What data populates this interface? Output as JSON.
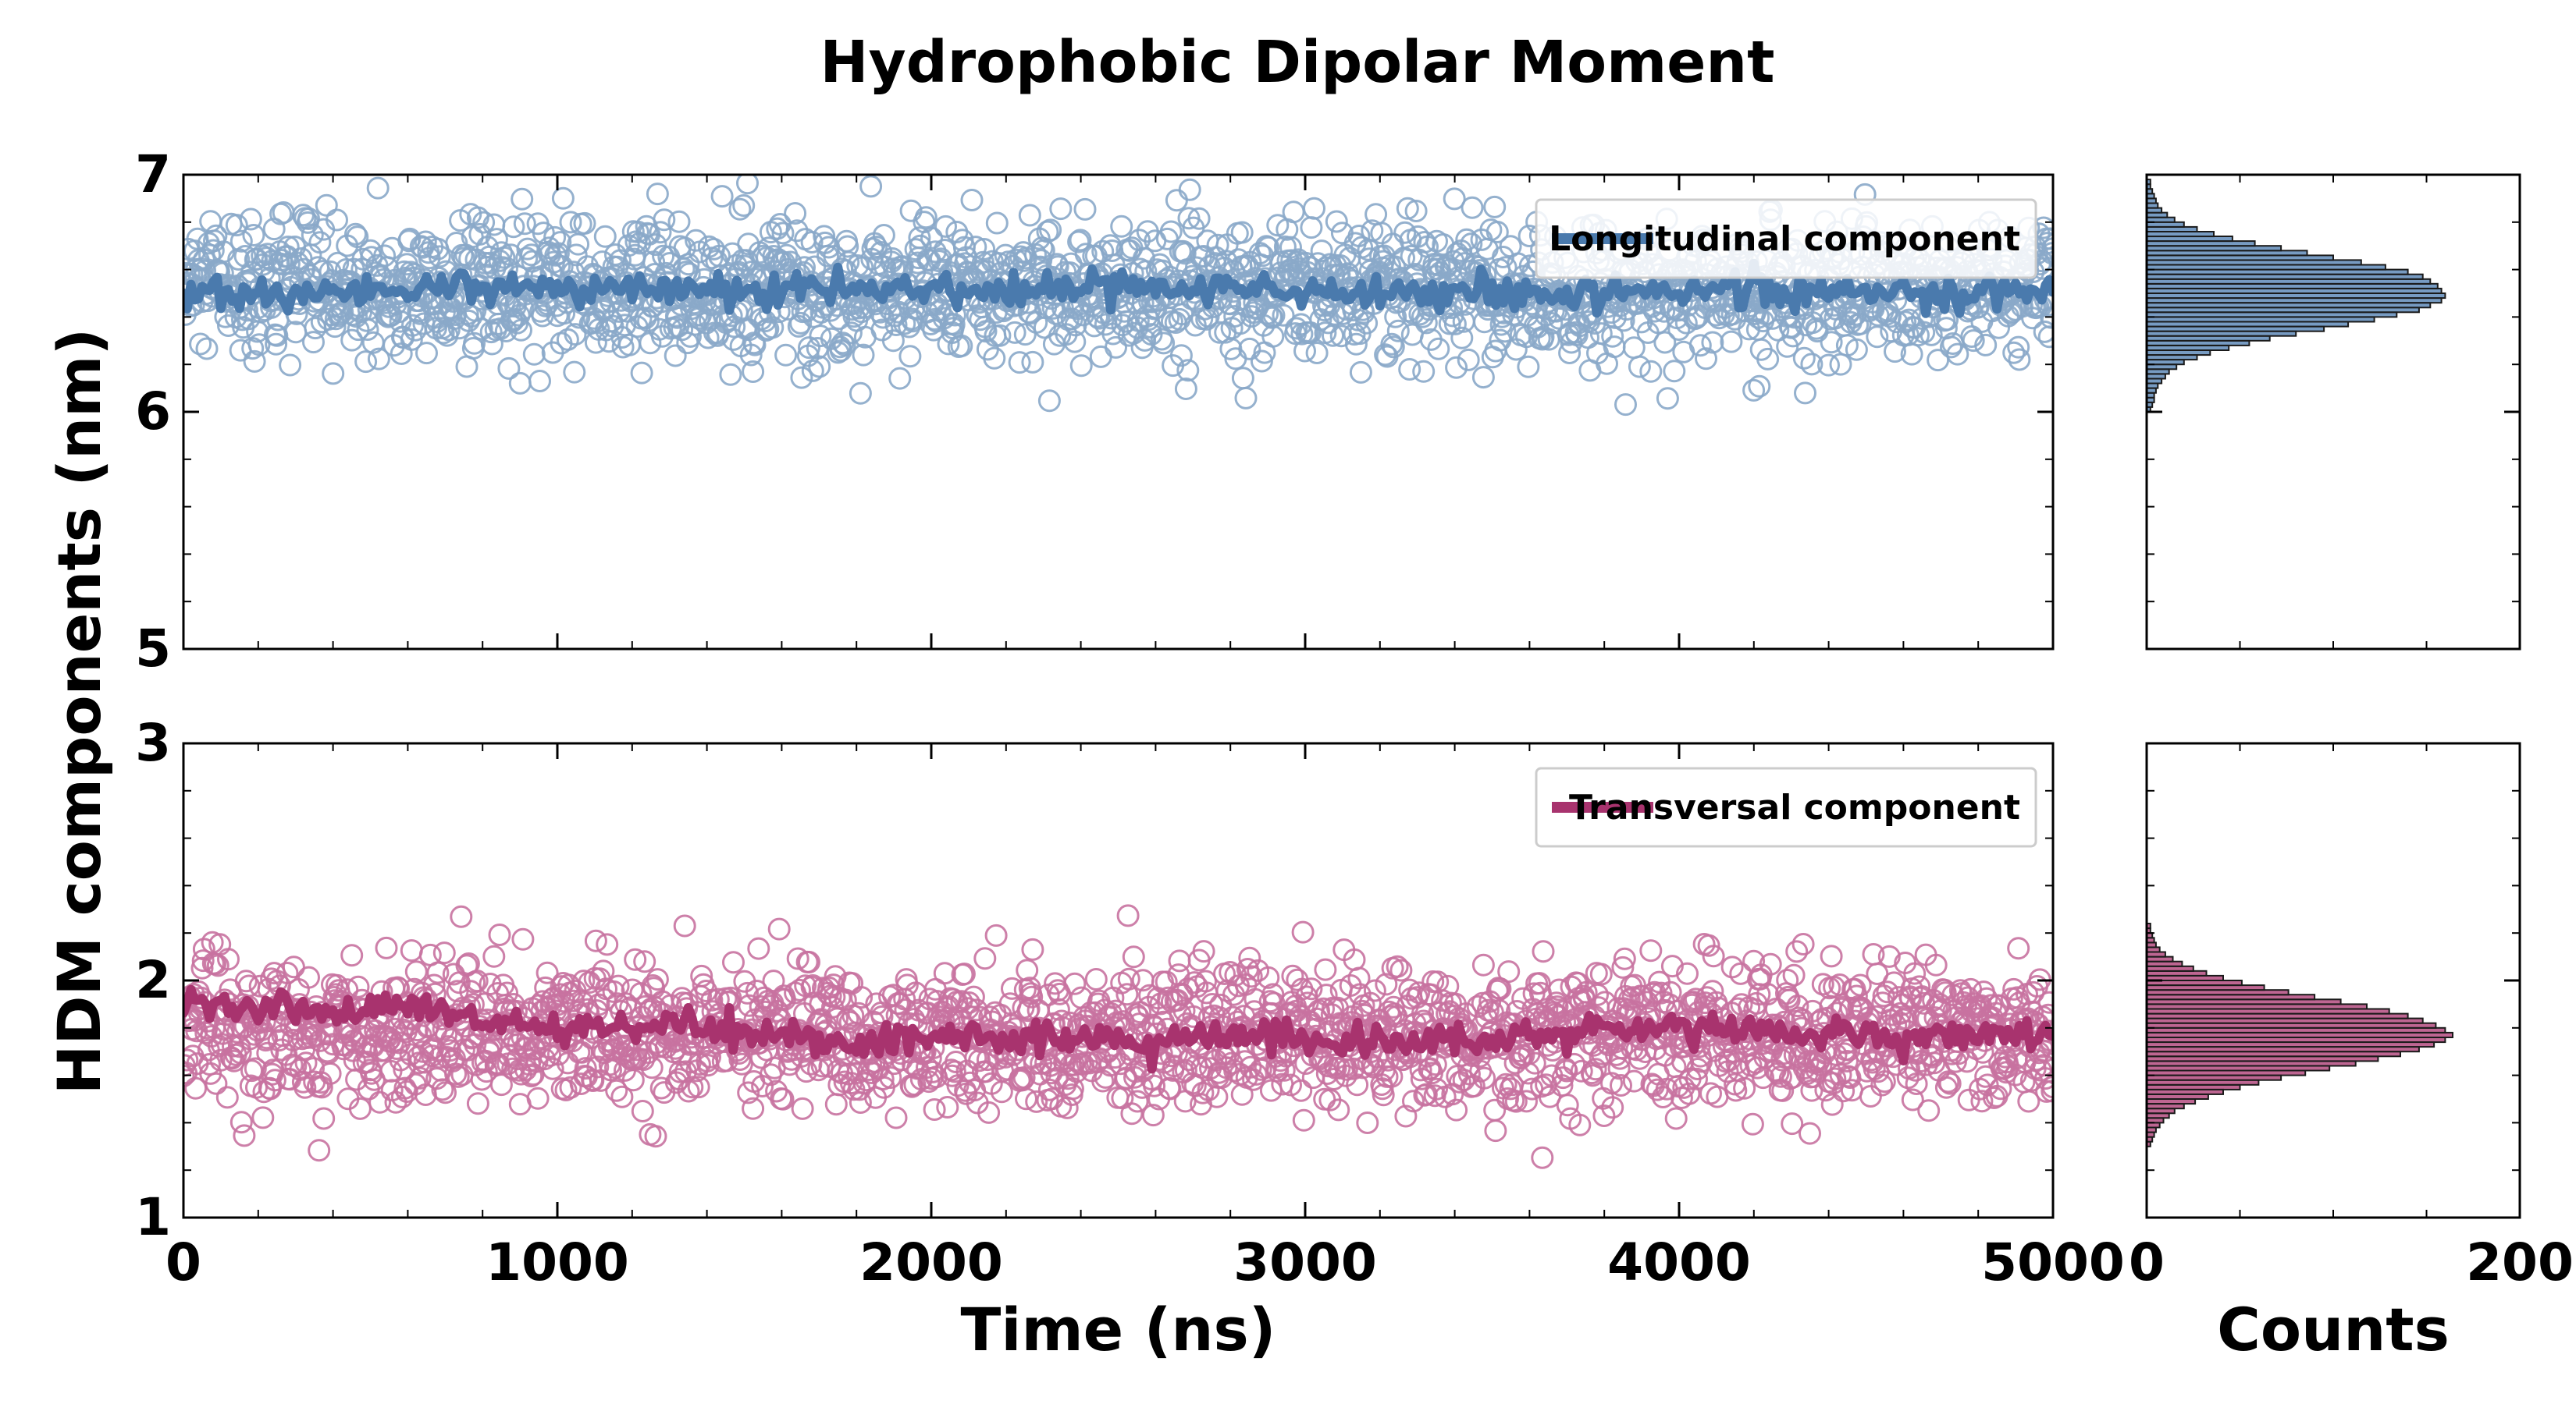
{
  "chart_data": {
    "type": "scatter",
    "title": "Hydrophobic Dipolar Moment",
    "ylabel": "HDM components (nm)",
    "panels": [
      {
        "id": "longitudinal",
        "kind": "scatter+line",
        "legend": "Longitudinal component",
        "legend_position": "top-right",
        "xlim": [
          0,
          5000
        ],
        "ylim": [
          5,
          7
        ],
        "y_ticks": [
          "5",
          "6",
          "7"
        ],
        "x_ticks_labeled": false,
        "color": "#4a7aad",
        "marker_color": "#8aa9c9",
        "x_range": [
          0,
          5000
        ],
        "n_points": 2000,
        "scatter_mean": 6.51,
        "scatter_sd": 0.15,
        "running_mean": [
          [
            0,
            6.5
          ],
          [
            200,
            6.49
          ],
          [
            400,
            6.5
          ],
          [
            600,
            6.52
          ],
          [
            800,
            6.53
          ],
          [
            1000,
            6.51
          ],
          [
            1200,
            6.53
          ],
          [
            1400,
            6.5
          ],
          [
            1600,
            6.52
          ],
          [
            1800,
            6.51
          ],
          [
            2000,
            6.52
          ],
          [
            2200,
            6.5
          ],
          [
            2400,
            6.54
          ],
          [
            2600,
            6.53
          ],
          [
            2800,
            6.52
          ],
          [
            3000,
            6.5
          ],
          [
            3200,
            6.51
          ],
          [
            3400,
            6.5
          ],
          [
            3600,
            6.49
          ],
          [
            3800,
            6.5
          ],
          [
            4000,
            6.51
          ],
          [
            4200,
            6.51
          ],
          [
            4400,
            6.52
          ],
          [
            4600,
            6.51
          ],
          [
            4800,
            6.5
          ],
          [
            5000,
            6.51
          ]
        ]
      },
      {
        "id": "transversal",
        "kind": "scatter+line",
        "legend": "Transversal component",
        "legend_position": "top-right",
        "xlim": [
          0,
          5000
        ],
        "ylim": [
          1,
          3
        ],
        "y_ticks": [
          "1",
          "2",
          "3"
        ],
        "x_ticks": [
          "0",
          "1000",
          "2000",
          "3000",
          "4000",
          "5000"
        ],
        "xlabel": "Time (ns)",
        "color": "#a8336e",
        "marker_color": "#c872a0",
        "x_range": [
          0,
          5000
        ],
        "n_points": 2000,
        "scatter_mean": 1.77,
        "scatter_sd": 0.15,
        "running_mean": [
          [
            0,
            1.9
          ],
          [
            200,
            1.88
          ],
          [
            400,
            1.86
          ],
          [
            600,
            1.88
          ],
          [
            800,
            1.83
          ],
          [
            1000,
            1.79
          ],
          [
            1200,
            1.82
          ],
          [
            1400,
            1.8
          ],
          [
            1600,
            1.76
          ],
          [
            1800,
            1.74
          ],
          [
            2000,
            1.77
          ],
          [
            2200,
            1.75
          ],
          [
            2400,
            1.76
          ],
          [
            2600,
            1.74
          ],
          [
            2800,
            1.77
          ],
          [
            3000,
            1.76
          ],
          [
            3200,
            1.75
          ],
          [
            3400,
            1.74
          ],
          [
            3600,
            1.77
          ],
          [
            3800,
            1.79
          ],
          [
            4000,
            1.8
          ],
          [
            4200,
            1.79
          ],
          [
            4400,
            1.77
          ],
          [
            4600,
            1.76
          ],
          [
            4800,
            1.77
          ],
          [
            5000,
            1.78
          ]
        ]
      },
      {
        "id": "hist-longitudinal",
        "kind": "histogram",
        "orientation": "horizontal",
        "xlim": [
          0,
          200
        ],
        "ylim": [
          5,
          7
        ],
        "color": "#4a7aad",
        "bin_width": 0.02,
        "bins": [
          [
            6.0,
            6.02,
            2
          ],
          [
            6.02,
            6.04,
            3
          ],
          [
            6.04,
            6.06,
            4
          ],
          [
            6.06,
            6.08,
            4
          ],
          [
            6.08,
            6.1,
            5
          ],
          [
            6.1,
            6.12,
            6
          ],
          [
            6.12,
            6.14,
            8
          ],
          [
            6.14,
            6.16,
            10
          ],
          [
            6.16,
            6.18,
            12
          ],
          [
            6.18,
            6.2,
            16
          ],
          [
            6.2,
            6.22,
            20
          ],
          [
            6.22,
            6.24,
            27
          ],
          [
            6.24,
            6.26,
            34
          ],
          [
            6.26,
            6.28,
            44
          ],
          [
            6.28,
            6.3,
            55
          ],
          [
            6.3,
            6.32,
            66
          ],
          [
            6.32,
            6.34,
            80
          ],
          [
            6.34,
            6.36,
            95
          ],
          [
            6.36,
            6.38,
            108
          ],
          [
            6.38,
            6.4,
            122
          ],
          [
            6.4,
            6.42,
            134
          ],
          [
            6.42,
            6.44,
            146
          ],
          [
            6.44,
            6.46,
            152
          ],
          [
            6.46,
            6.48,
            158
          ],
          [
            6.48,
            6.5,
            160
          ],
          [
            6.5,
            6.52,
            158
          ],
          [
            6.52,
            6.54,
            156
          ],
          [
            6.54,
            6.56,
            152
          ],
          [
            6.56,
            6.58,
            148
          ],
          [
            6.58,
            6.6,
            140
          ],
          [
            6.6,
            6.62,
            128
          ],
          [
            6.62,
            6.64,
            115
          ],
          [
            6.64,
            6.66,
            100
          ],
          [
            6.66,
            6.68,
            86
          ],
          [
            6.68,
            6.7,
            72
          ],
          [
            6.7,
            6.72,
            58
          ],
          [
            6.72,
            6.74,
            46
          ],
          [
            6.74,
            6.76,
            36
          ],
          [
            6.76,
            6.78,
            27
          ],
          [
            6.78,
            6.8,
            20
          ],
          [
            6.8,
            6.82,
            15
          ],
          [
            6.82,
            6.84,
            11
          ],
          [
            6.84,
            6.86,
            8
          ],
          [
            6.86,
            6.88,
            6
          ],
          [
            6.88,
            6.9,
            5
          ],
          [
            6.9,
            6.92,
            4
          ],
          [
            6.92,
            6.94,
            3
          ],
          [
            6.94,
            6.96,
            2
          ],
          [
            6.96,
            6.98,
            2
          ]
        ]
      },
      {
        "id": "hist-transversal",
        "kind": "histogram",
        "orientation": "horizontal",
        "xlim": [
          0,
          200
        ],
        "ylim": [
          1,
          3
        ],
        "x_ticks": [
          "0",
          "200"
        ],
        "xlabel": "Counts",
        "color": "#a8336e",
        "bin_width": 0.02,
        "bins": [
          [
            1.3,
            1.32,
            2
          ],
          [
            1.32,
            1.34,
            3
          ],
          [
            1.34,
            1.36,
            4
          ],
          [
            1.36,
            1.38,
            5
          ],
          [
            1.38,
            1.4,
            7
          ],
          [
            1.4,
            1.42,
            9
          ],
          [
            1.42,
            1.44,
            12
          ],
          [
            1.44,
            1.46,
            15
          ],
          [
            1.46,
            1.48,
            20
          ],
          [
            1.48,
            1.5,
            26
          ],
          [
            1.5,
            1.52,
            33
          ],
          [
            1.52,
            1.54,
            41
          ],
          [
            1.54,
            1.56,
            50
          ],
          [
            1.56,
            1.58,
            60
          ],
          [
            1.58,
            1.6,
            72
          ],
          [
            1.6,
            1.62,
            85
          ],
          [
            1.62,
            1.64,
            98
          ],
          [
            1.64,
            1.66,
            112
          ],
          [
            1.66,
            1.68,
            124
          ],
          [
            1.68,
            1.7,
            136
          ],
          [
            1.7,
            1.72,
            146
          ],
          [
            1.72,
            1.74,
            154
          ],
          [
            1.74,
            1.76,
            160
          ],
          [
            1.76,
            1.78,
            164
          ],
          [
            1.78,
            1.8,
            160
          ],
          [
            1.8,
            1.82,
            155
          ],
          [
            1.82,
            1.84,
            148
          ],
          [
            1.84,
            1.86,
            140
          ],
          [
            1.86,
            1.88,
            130
          ],
          [
            1.88,
            1.9,
            118
          ],
          [
            1.9,
            1.92,
            104
          ],
          [
            1.92,
            1.94,
            90
          ],
          [
            1.94,
            1.96,
            76
          ],
          [
            1.96,
            1.98,
            63
          ],
          [
            1.98,
            2.0,
            51
          ],
          [
            2.0,
            2.02,
            41
          ],
          [
            2.02,
            2.04,
            32
          ],
          [
            2.04,
            2.06,
            25
          ],
          [
            2.06,
            2.08,
            19
          ],
          [
            2.08,
            2.1,
            14
          ],
          [
            2.1,
            2.12,
            10
          ],
          [
            2.12,
            2.14,
            7
          ],
          [
            2.14,
            2.16,
            5
          ],
          [
            2.16,
            2.18,
            4
          ],
          [
            2.18,
            2.2,
            3
          ],
          [
            2.2,
            2.22,
            2
          ],
          [
            2.22,
            2.24,
            2
          ]
        ]
      }
    ]
  }
}
